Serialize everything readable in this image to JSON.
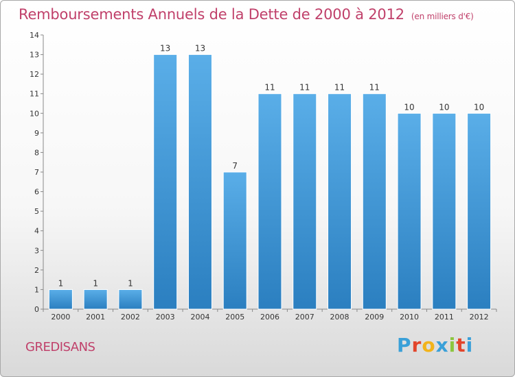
{
  "header": {
    "title": "Remboursements Annuels de la Dette de 2000 à 2012",
    "unit": "(en milliers d'€)"
  },
  "commune": "GREDISANS",
  "logo": {
    "letters": [
      "P",
      "r",
      "o",
      "x",
      "i",
      "t",
      "i"
    ],
    "colors": [
      "#3aa0d8",
      "#e2452b",
      "#f2b31b",
      "#3aa0d8",
      "#8cc63f",
      "#e2452b",
      "#3aa0d8"
    ]
  },
  "chart_data": {
    "type": "bar",
    "categories": [
      "2000",
      "2001",
      "2002",
      "2003",
      "2004",
      "2005",
      "2006",
      "2007",
      "2008",
      "2009",
      "2010",
      "2011",
      "2012"
    ],
    "values": [
      1,
      1,
      1,
      13,
      13,
      7,
      11,
      11,
      11,
      11,
      10,
      10,
      10
    ],
    "data_labels": [
      "1",
      "1",
      "1",
      "13",
      "13",
      "7",
      "11",
      "11",
      "11",
      "11",
      "10",
      "10",
      "10"
    ],
    "title": "Remboursements Annuels de la Dette de 2000 à 2012",
    "xlabel": "",
    "ylabel": "",
    "ylim": [
      0,
      14
    ],
    "yticks": [
      0,
      1,
      2,
      3,
      4,
      5,
      6,
      7,
      8,
      9,
      10,
      11,
      12,
      13,
      14
    ],
    "yticks_labels": [
      "0",
      "1",
      "2",
      "3",
      "4",
      "5",
      "6",
      "7",
      "8",
      "9",
      "10",
      "11",
      "12",
      "13",
      "14"
    ],
    "bar_color": "#3a90d0",
    "grid": false,
    "legend": "none"
  }
}
